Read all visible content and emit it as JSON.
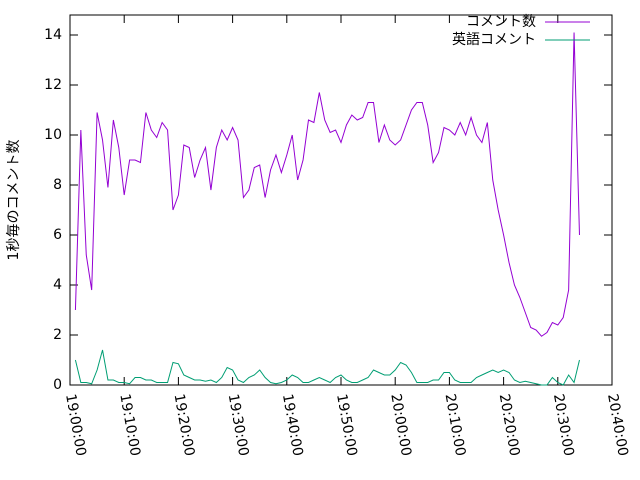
{
  "chart_data": {
    "type": "line",
    "y_label": "1秒毎のコメント数",
    "x": [
      "19:01:00",
      "19:02:00",
      "19:03:00",
      "19:04:00",
      "19:05:00",
      "19:06:00",
      "19:07:00",
      "19:08:00",
      "19:09:00",
      "19:10:00",
      "19:11:00",
      "19:12:00",
      "19:13:00",
      "19:14:00",
      "19:15:00",
      "19:16:00",
      "19:17:00",
      "19:18:00",
      "19:19:00",
      "19:20:00",
      "19:21:00",
      "19:22:00",
      "19:23:00",
      "19:24:00",
      "19:25:00",
      "19:26:00",
      "19:27:00",
      "19:28:00",
      "19:29:00",
      "19:30:00",
      "19:31:00",
      "19:32:00",
      "19:33:00",
      "19:34:00",
      "19:35:00",
      "19:36:00",
      "19:37:00",
      "19:38:00",
      "19:39:00",
      "19:40:00",
      "19:41:00",
      "19:42:00",
      "19:43:00",
      "19:44:00",
      "19:45:00",
      "19:46:00",
      "19:47:00",
      "19:48:00",
      "19:49:00",
      "19:50:00",
      "19:51:00",
      "19:52:00",
      "19:53:00",
      "19:54:00",
      "19:55:00",
      "19:56:00",
      "19:57:00",
      "19:58:00",
      "19:59:00",
      "20:00:00",
      "20:01:00",
      "20:02:00",
      "20:03:00",
      "20:04:00",
      "20:05:00",
      "20:06:00",
      "20:07:00",
      "20:08:00",
      "20:09:00",
      "20:10:00",
      "20:11:00",
      "20:12:00",
      "20:13:00",
      "20:14:00",
      "20:15:00",
      "20:16:00",
      "20:17:00",
      "20:18:00",
      "20:19:00",
      "20:20:00",
      "20:21:00",
      "20:22:00",
      "20:23:00",
      "20:24:00",
      "20:25:00",
      "20:26:00",
      "20:27:00",
      "20:28:00",
      "20:29:00",
      "20:30:00",
      "20:31:00",
      "20:32:00",
      "20:33:00",
      "20:34:00"
    ],
    "series": [
      {
        "name": "コメント数",
        "color": "#9400d3",
        "values": [
          3.0,
          10.2,
          5.2,
          3.8,
          10.9,
          9.8,
          7.9,
          10.6,
          9.5,
          7.6,
          9.0,
          9.0,
          8.9,
          10.9,
          10.2,
          9.9,
          10.5,
          10.2,
          7.0,
          7.6,
          9.6,
          9.5,
          8.3,
          9.0,
          9.5,
          7.8,
          9.5,
          10.2,
          9.8,
          10.3,
          9.8,
          7.5,
          7.8,
          8.7,
          8.8,
          7.5,
          8.6,
          9.2,
          8.5,
          9.2,
          10.0,
          8.2,
          9.0,
          10.6,
          10.5,
          11.7,
          10.6,
          10.1,
          10.2,
          9.7,
          10.4,
          10.8,
          10.6,
          10.7,
          11.3,
          11.3,
          9.7,
          10.4,
          9.8,
          9.6,
          9.8,
          10.4,
          11.0,
          11.3,
          11.3,
          10.4,
          8.9,
          9.3,
          10.3,
          10.2,
          10.0,
          10.5,
          10.0,
          10.7,
          10.0,
          9.7,
          10.5,
          8.2,
          7.0,
          6.0,
          4.9,
          4.0,
          3.5,
          2.9,
          2.3,
          2.2,
          1.95,
          2.1,
          2.5,
          2.4,
          2.7,
          3.8,
          14.1,
          6.0
        ]
      },
      {
        "name": "英語コメント",
        "color": "#009e73",
        "values": [
          1.0,
          0.1,
          0.1,
          0.05,
          0.6,
          1.4,
          0.2,
          0.2,
          0.1,
          0.1,
          0.05,
          0.3,
          0.3,
          0.2,
          0.2,
          0.1,
          0.1,
          0.1,
          0.9,
          0.85,
          0.4,
          0.3,
          0.2,
          0.2,
          0.15,
          0.2,
          0.1,
          0.3,
          0.7,
          0.6,
          0.2,
          0.1,
          0.3,
          0.4,
          0.6,
          0.3,
          0.1,
          0.05,
          0.1,
          0.2,
          0.4,
          0.3,
          0.1,
          0.1,
          0.2,
          0.3,
          0.2,
          0.1,
          0.3,
          0.4,
          0.2,
          0.1,
          0.1,
          0.2,
          0.3,
          0.6,
          0.5,
          0.4,
          0.4,
          0.6,
          0.9,
          0.8,
          0.5,
          0.1,
          0.1,
          0.1,
          0.2,
          0.2,
          0.5,
          0.5,
          0.2,
          0.1,
          0.1,
          0.1,
          0.3,
          0.4,
          0.5,
          0.6,
          0.5,
          0.6,
          0.5,
          0.2,
          0.1,
          0.15,
          0.1,
          0.05,
          0.0,
          0.0,
          0.3,
          0.1,
          0.0,
          0.4,
          0.1,
          1.0
        ]
      }
    ],
    "xlim": [
      "19:00:00",
      "20:40:00"
    ],
    "xticks": [
      "19:00:00",
      "19:10:00",
      "19:20:00",
      "19:30:00",
      "19:40:00",
      "19:50:00",
      "20:00:00",
      "20:10:00",
      "20:20:00",
      "20:30:00",
      "20:40:00"
    ],
    "ylim": [
      0,
      14.8
    ],
    "yticks": [
      0,
      2,
      4,
      6,
      8,
      10,
      12,
      14
    ],
    "legend": "top-right",
    "grid": false
  }
}
